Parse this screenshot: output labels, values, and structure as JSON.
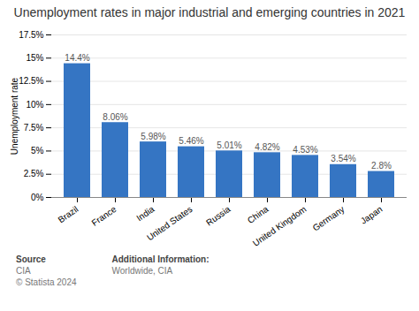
{
  "chart_data": {
    "type": "bar",
    "title": "Unemployment rates in major industrial and emerging countries in 2021",
    "ylabel": "Unemployment rate",
    "categories": [
      "Brazil",
      "France",
      "India",
      "United States",
      "Russia",
      "China",
      "United Kingdom",
      "Germany",
      "Japan"
    ],
    "values": [
      14.4,
      8.06,
      5.98,
      5.46,
      5.01,
      4.82,
      4.53,
      3.54,
      2.8
    ],
    "value_labels": [
      "14.4%",
      "8.06%",
      "5.98%",
      "5.46%",
      "5.01%",
      "4.82%",
      "4.53%",
      "3.54%",
      "2.8%"
    ],
    "data_labels": true,
    "color": "#3575c3",
    "ylim": [
      0,
      17.5
    ],
    "yticks": [
      {
        "value": 0,
        "label": "0%"
      },
      {
        "value": 2.5,
        "label": "2.5%"
      },
      {
        "value": 5.0,
        "label": "5%"
      },
      {
        "value": 7.5,
        "label": "7.5%"
      },
      {
        "value": 10.0,
        "label": "10%"
      },
      {
        "value": 12.5,
        "label": "12.5%"
      },
      {
        "value": 15.0,
        "label": "15%"
      },
      {
        "value": 17.5,
        "label": "17.5%"
      }
    ],
    "grid": true,
    "annotations": [
      "Source",
      "CIA",
      "© Statista 2024",
      "Additional Information:",
      "Worldwide, CIA"
    ]
  }
}
